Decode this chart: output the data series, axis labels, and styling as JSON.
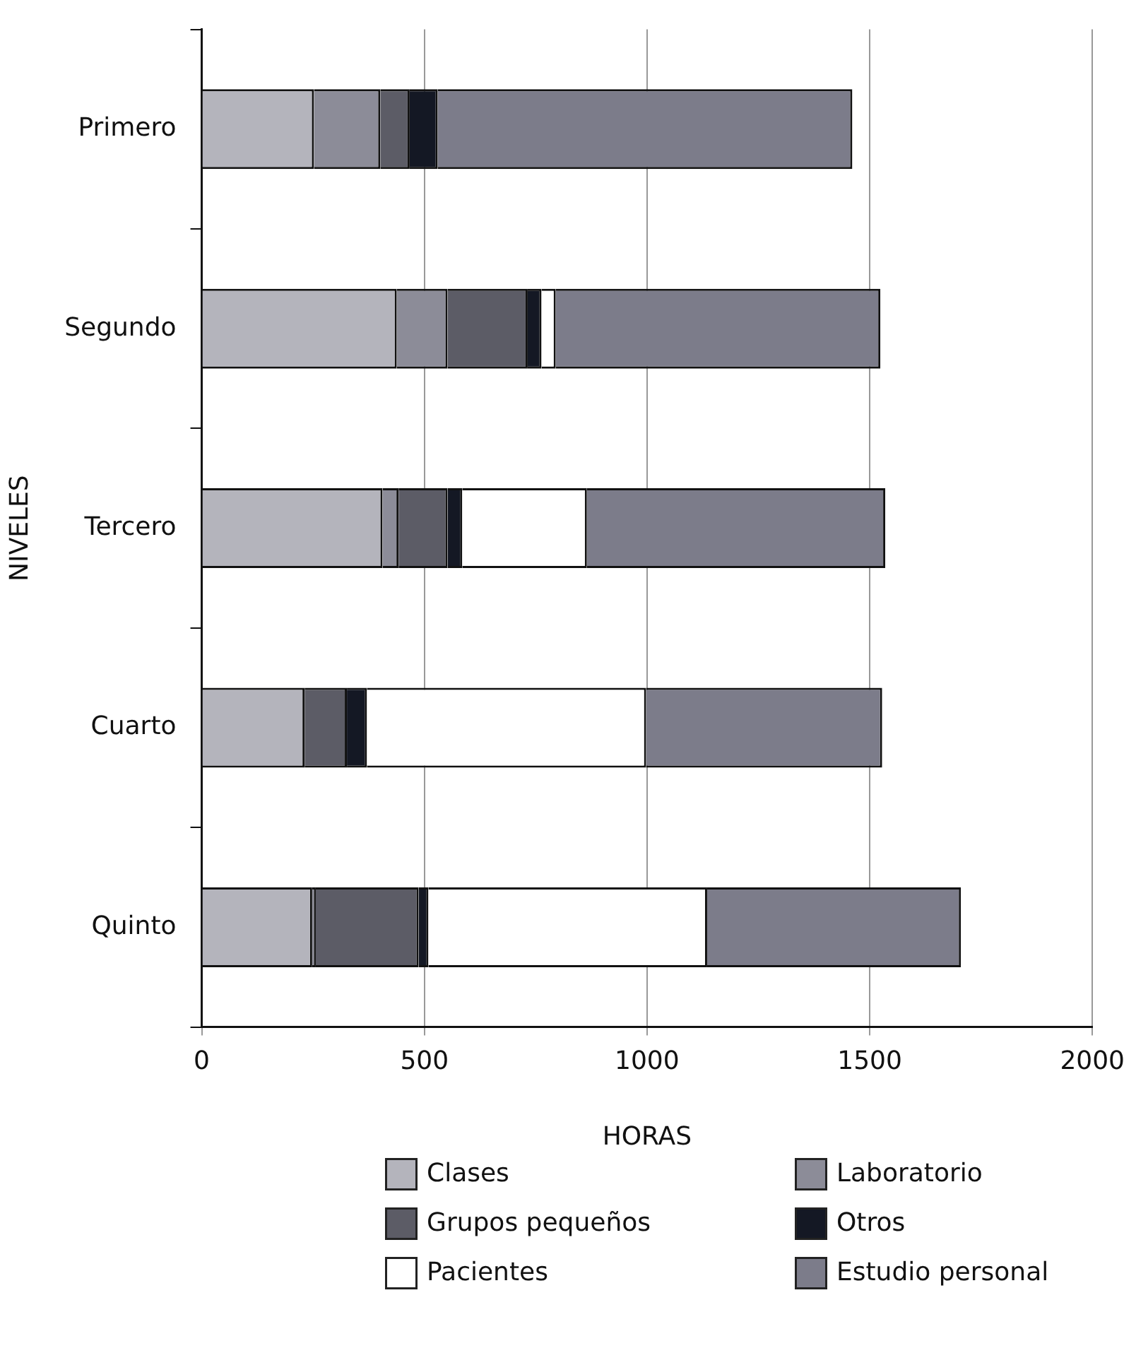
{
  "chart_data": {
    "type": "bar",
    "orientation": "horizontal",
    "stacked": true,
    "xlabel": "HORAS",
    "ylabel": "NIVELES",
    "categories": [
      "Primero",
      "Segundo",
      "Tercero",
      "Cuarto",
      "Quinto"
    ],
    "series": [
      {
        "name": "Clases",
        "color": "#b4b4bc",
        "values": [
          252,
          438,
          406,
          231,
          248
        ]
      },
      {
        "name": "Laboratorio",
        "color": "#8c8c98",
        "values": [
          149,
          114,
          36,
          0,
          8
        ]
      },
      {
        "name": "Grupos pequeños",
        "color": "#5c5c66",
        "values": [
          66,
          180,
          110,
          95,
          231
        ]
      },
      {
        "name": "Otros",
        "color": "#141824",
        "values": [
          63,
          31,
          33,
          45,
          22
        ]
      },
      {
        "name": "Pacientes",
        "color": "#ffffff",
        "values": [
          0,
          32,
          280,
          627,
          626
        ]
      },
      {
        "name": "Estudio personal",
        "color": "#7c7c8a",
        "values": [
          931,
          729,
          670,
          530,
          570
        ]
      }
    ],
    "xlim": [
      0,
      2000
    ],
    "xticks": [
      0,
      500,
      1000,
      1500,
      2000
    ],
    "grid": "x",
    "legend": "bottom"
  }
}
